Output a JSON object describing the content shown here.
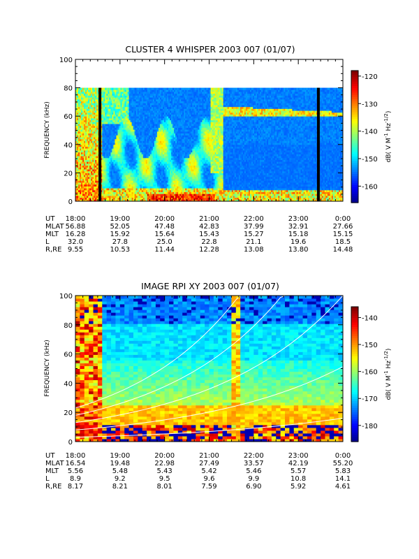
{
  "chart_data": [
    {
      "type": "heatmap",
      "title": "CLUSTER 4 WHISPER 2003 007 (01/07)",
      "ylabel": "FREQUENCY (kHz)",
      "ylim": [
        0,
        100
      ],
      "y_ticks": [
        "0",
        "20",
        "40",
        "60",
        "80",
        "100"
      ],
      "x_ticks": [
        "18:00",
        "19:00",
        "20:00",
        "21:00",
        "22:00",
        "23:00",
        "0:00"
      ],
      "colorbar": {
        "label": "dB( V M⁻¹ Hz⁻¹ᐟ²)",
        "label_text": "dB( V M",
        "label_sup1": "-1",
        "label_mid": " Hz",
        "label_sup2": "-1/2",
        "label_end": ")",
        "min": -166,
        "max": -118,
        "ticks": [
          "-120",
          "-130",
          "-140",
          "-150",
          "-160"
        ],
        "tick_values": [
          -120,
          -130,
          -140,
          -150,
          -160
        ]
      },
      "data_ceiling_khz": 80,
      "ephemeris": [
        {
          "label": "UT",
          "values": [
            "18:00",
            "",
            "",
            "",
            "",
            "",
            ""
          ]
        },
        {
          "label": "MLAT",
          "values": [
            "56.88",
            "52.05",
            "47.48",
            "42.83",
            "37.99",
            "32.91",
            "27.66"
          ]
        },
        {
          "label": "MLT",
          "values": [
            "16.28",
            "15.92",
            "15.64",
            "15.43",
            "15.27",
            "15.18",
            "15.15"
          ]
        },
        {
          "label": "L",
          "values": [
            "32.0",
            "27.8",
            "25.0",
            "22.8",
            "21.1",
            "19.6",
            "18.5"
          ]
        },
        {
          "label": "R,RE",
          "values": [
            "9.55",
            "10.53",
            "11.44",
            "12.28",
            "13.08",
            "13.80",
            "14.48"
          ]
        }
      ],
      "features": [
        {
          "name": "data gap",
          "time_h": 18.55
        },
        {
          "name": "data gap",
          "time_h": 23.45
        },
        {
          "name": "emission band",
          "freq_khz_start": 62,
          "freq_khz_end": 63
        }
      ]
    },
    {
      "type": "heatmap",
      "title": "IMAGE RPI XY 2003 007 (01/07)",
      "ylabel": "FREQUENCY (kHz)",
      "ylim": [
        0,
        100
      ],
      "y_ticks": [
        "0",
        "20",
        "40",
        "60",
        "80",
        "100"
      ],
      "x_ticks": [
        "18:00",
        "19:00",
        "20:00",
        "21:00",
        "22:00",
        "23:00",
        "0:00"
      ],
      "colorbar": {
        "label_text": "dB( V M",
        "label_sup1": "-1",
        "label_mid": " Hz",
        "label_sup2": "-1/2",
        "label_end": ")",
        "min": -186,
        "max": -136,
        "ticks": [
          "-140",
          "-150",
          "-160",
          "-170",
          "-180"
        ],
        "tick_values": [
          -140,
          -150,
          -160,
          -170,
          -180
        ]
      },
      "ephemeris": [
        {
          "label": "UT",
          "values": [
            "18:00",
            "",
            "",
            "",
            "",
            "",
            ""
          ]
        },
        {
          "label": "MLAT",
          "values": [
            "16.54",
            "19.48",
            "22.98",
            "27.49",
            "33.57",
            "42.19",
            "55.20"
          ]
        },
        {
          "label": "MLT",
          "values": [
            "5.56",
            "5.48",
            "5.43",
            "5.42",
            "5.46",
            "5.57",
            "5.83"
          ]
        },
        {
          "label": "L",
          "values": [
            "8.9",
            "9.2",
            "9.5",
            "9.6",
            "9.9",
            "10.8",
            "14.1"
          ]
        },
        {
          "label": "R,RE",
          "values": [
            "8.17",
            "8.21",
            "8.01",
            "7.59",
            "6.90",
            "5.92",
            "4.61"
          ]
        }
      ],
      "overlay_curves_white": 5
    }
  ],
  "ut_first_label": "UT",
  "ut_start": "18:00"
}
